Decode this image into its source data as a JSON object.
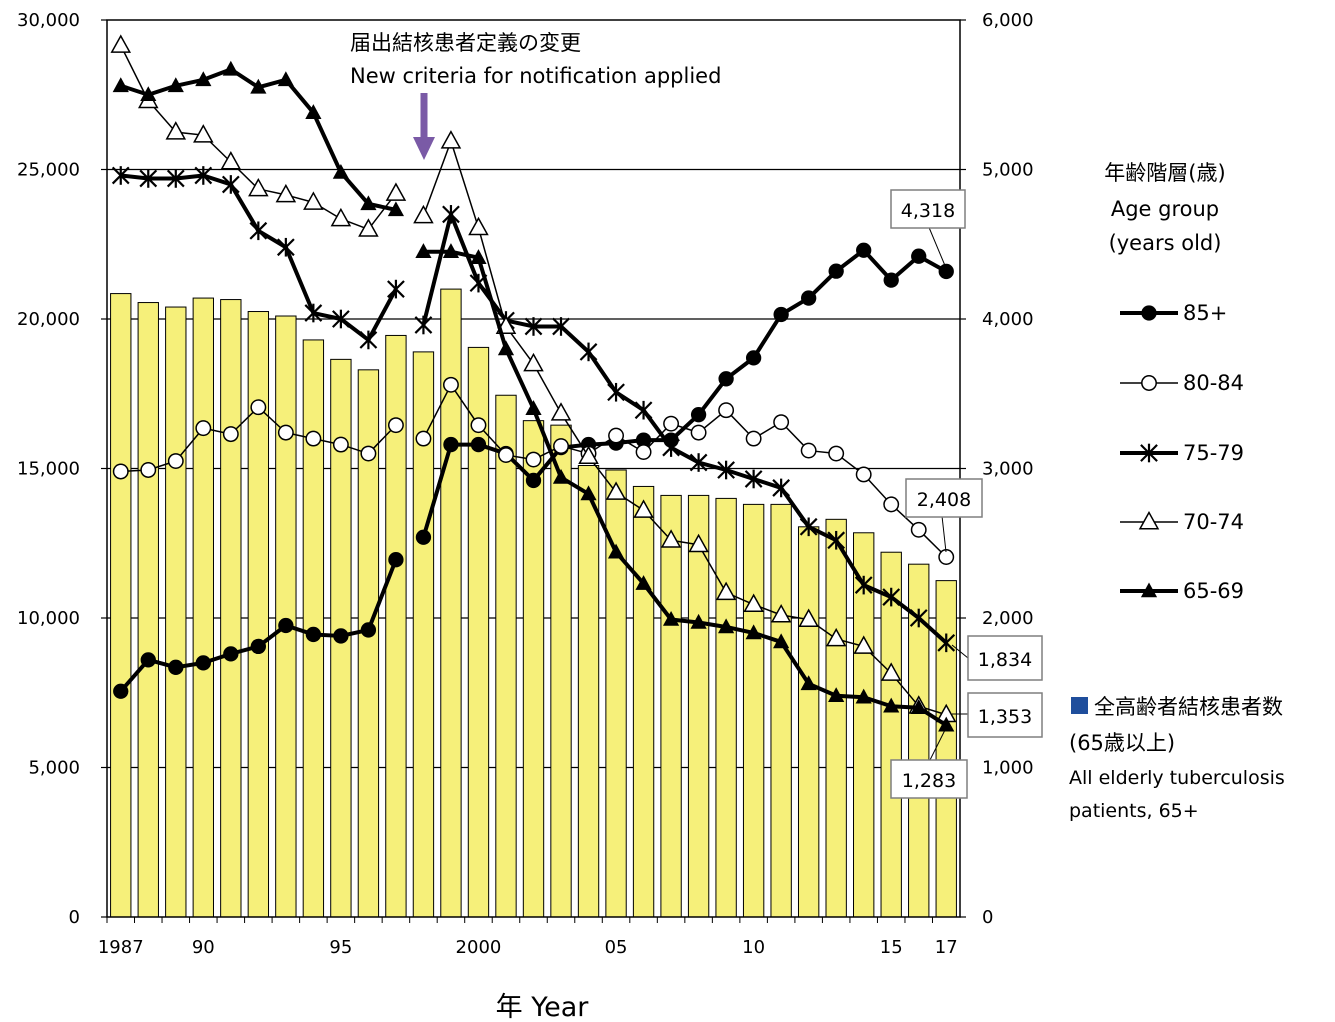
{
  "chart_data": {
    "type": "bar",
    "x": [
      1987,
      1988,
      1989,
      1990,
      1991,
      1992,
      1993,
      1994,
      1995,
      1996,
      1997,
      1998,
      1999,
      2000,
      2001,
      2002,
      2003,
      2004,
      2005,
      2006,
      2007,
      2008,
      2009,
      2010,
      2011,
      2012,
      2013,
      2014,
      2015,
      2016,
      2017
    ],
    "x_tick_labels": [
      {
        "x": 1987,
        "label": "1987"
      },
      {
        "x": 1990,
        "label": "90"
      },
      {
        "x": 1995,
        "label": "95"
      },
      {
        "x": 2000,
        "label": "2000"
      },
      {
        "x": 2005,
        "label": "05"
      },
      {
        "x": 2010,
        "label": "10"
      },
      {
        "x": 2015,
        "label": "15"
      },
      {
        "x": 2017,
        "label": "17"
      }
    ],
    "xlabel": "年  Year",
    "left_axis": {
      "ylim": [
        0,
        30000
      ],
      "ticks": [
        "0",
        "5,000",
        "10,000",
        "15,000",
        "20,000",
        "25,000",
        "30,000"
      ]
    },
    "right_axis": {
      "ylim": [
        0,
        6000
      ],
      "ticks": [
        "0",
        "1,000",
        "2,000",
        "3,000",
        "4,000",
        "5,000",
        "6,000"
      ]
    },
    "grid": "horizontal",
    "bars": {
      "name_lines": [
        "全高齢者結核患者数",
        "(65歳以上)",
        "All elderly tuberculosis",
        "patients, 65+"
      ],
      "axis": "left",
      "color": "#f6f07a",
      "legend_marker_color": "#1f4e9c",
      "values": [
        20850,
        20550,
        20400,
        20700,
        20650,
        20250,
        20100,
        19300,
        18650,
        18300,
        19450,
        18900,
        21000,
        19050,
        17450,
        16600,
        16450,
        15100,
        14950,
        14400,
        14100,
        14100,
        14000,
        13800,
        13800,
        13050,
        13300,
        12850,
        12200,
        11800,
        11250
      ]
    },
    "series": [
      {
        "name": "85+",
        "axis": "right",
        "line_width": 4,
        "marker": "filled-circle",
        "values": [
          1510,
          1720,
          1670,
          1700,
          1760,
          1810,
          1950,
          1890,
          1880,
          1920,
          2390,
          2540,
          3160,
          3160,
          3100,
          2920,
          3140,
          3160,
          3170,
          3190,
          3190,
          3360,
          3600,
          3740,
          4030,
          4140,
          4320,
          4460,
          4260,
          4420,
          4318
        ]
      },
      {
        "name": "80-84",
        "axis": "right",
        "line_width": 1.5,
        "marker": "open-circle",
        "values": [
          2980,
          2990,
          3050,
          3270,
          3230,
          3410,
          3240,
          3200,
          3160,
          3100,
          3290,
          3200,
          3560,
          3290,
          3090,
          3060,
          3150,
          3100,
          3220,
          3110,
          3300,
          3240,
          3390,
          3200,
          3310,
          3120,
          3100,
          2960,
          2760,
          2590,
          2408
        ]
      },
      {
        "name": "75-79",
        "axis": "right",
        "line_width": 4,
        "marker": "star",
        "values": [
          4960,
          4940,
          4940,
          4960,
          4900,
          4590,
          4480,
          4040,
          4000,
          3860,
          4200,
          3960,
          4700,
          4240,
          3990,
          3950,
          3950,
          3780,
          3510,
          3390,
          3140,
          3040,
          2990,
          2930,
          2870,
          2610,
          2520,
          2220,
          2140,
          2000,
          1834
        ]
      },
      {
        "name": "70-74",
        "axis": "right",
        "line_width": 1.5,
        "marker": "open-triangle",
        "values": [
          5830,
          5460,
          5250,
          5230,
          5050,
          4870,
          4830,
          4780,
          4670,
          4600,
          4840,
          4690,
          5190,
          4610,
          3950,
          3700,
          3370,
          3080,
          2840,
          2720,
          2520,
          2490,
          2170,
          2090,
          2020,
          1990,
          1860,
          1810,
          1630,
          1410,
          1353
        ]
      },
      {
        "name": "65-69",
        "axis": "right",
        "line_width": 4,
        "marker": "filled-triangle",
        "values": [
          5560,
          5500,
          5560,
          5600,
          5670,
          5550,
          5600,
          5380,
          4980,
          4770,
          4730,
          null,
          4450,
          4410,
          3800,
          3400,
          2940,
          2830,
          2440,
          2230,
          1990,
          1970,
          1940,
          1900,
          1840,
          1560,
          1480,
          1470,
          1410,
          1400,
          1283
        ],
        "values_1998": 4450
      }
    ],
    "annotations": {
      "title_jp": "届出結核患者定義の変更",
      "title_en": "New criteria for notification applied",
      "legend_title_jp": "年齢階層(歳)",
      "legend_title_en_1": "Age group",
      "legend_title_en_2": "(years old)",
      "end_labels": [
        "4,318",
        "2,408",
        "1,834",
        "1,353",
        "1,283"
      ]
    }
  }
}
